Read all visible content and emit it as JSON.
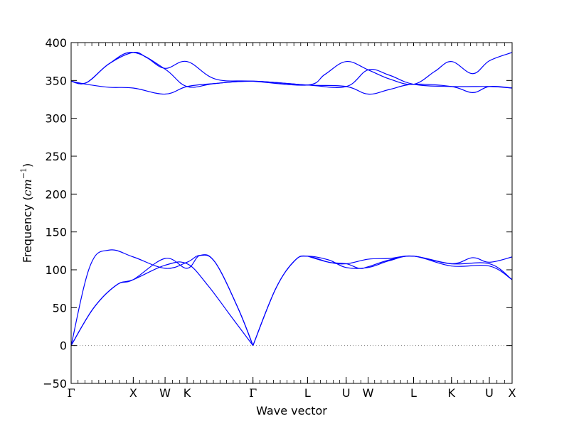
{
  "chart_data": {
    "type": "line",
    "title": "",
    "xlabel": "Wave vector",
    "ylabel": {
      "prefix": "Frequency (",
      "unit_base": "cm",
      "unit_exp": "−1",
      "suffix": ")"
    },
    "ylim": [
      -50,
      400
    ],
    "yticks": [
      -50,
      0,
      50,
      100,
      150,
      200,
      250,
      300,
      350,
      400
    ],
    "ytick_labels": [
      "−50",
      "0",
      "50",
      "100",
      "150",
      "200",
      "250",
      "300",
      "350",
      "400"
    ],
    "xlim": [
      0,
      5.82
    ],
    "high_symmetry_points": [
      {
        "label": "Γ",
        "x": 0.0
      },
      {
        "label": "X",
        "x": 0.82
      },
      {
        "label": "W",
        "x": 1.24
      },
      {
        "label": "K",
        "x": 1.53
      },
      {
        "label": "Γ",
        "x": 2.4
      },
      {
        "label": "L",
        "x": 3.12
      },
      {
        "label": "U",
        "x": 3.63
      },
      {
        "label": "W",
        "x": 3.92
      },
      {
        "label": "L",
        "x": 4.52
      },
      {
        "label": "K",
        "x": 5.02
      },
      {
        "label": "U",
        "x": 5.52
      },
      {
        "label": "X",
        "x": 5.82
      }
    ],
    "zero_line": {
      "y": 0,
      "style": "dotted",
      "color": "#808080"
    },
    "line_color": "#0000ff",
    "grid": false,
    "legend": "none",
    "series": [
      {
        "points": [
          [
            0,
            0
          ],
          [
            0.25,
            105
          ],
          [
            0.5,
            126
          ],
          [
            0.82,
            117
          ],
          [
            1.24,
            102
          ],
          [
            1.53,
            110
          ],
          [
            1.7,
            119
          ],
          [
            1.9,
            110
          ],
          [
            2.2,
            50
          ],
          [
            2.4,
            0
          ]
        ]
      },
      {
        "points": [
          [
            0,
            0
          ],
          [
            0.3,
            50
          ],
          [
            0.6,
            80
          ],
          [
            0.82,
            87
          ],
          [
            1.24,
            115
          ],
          [
            1.53,
            102
          ],
          [
            1.7,
            119
          ],
          [
            1.9,
            110
          ],
          [
            2.2,
            50
          ],
          [
            2.4,
            0
          ]
        ]
      },
      {
        "points": [
          [
            0,
            0
          ],
          [
            0.3,
            50
          ],
          [
            0.6,
            80
          ],
          [
            0.82,
            87
          ],
          [
            1.24,
            106
          ],
          [
            1.53,
            108
          ],
          [
            1.8,
            80
          ],
          [
            2.1,
            40
          ],
          [
            2.4,
            0
          ]
        ]
      },
      {
        "points": [
          [
            2.4,
            0
          ],
          [
            2.7,
            75
          ],
          [
            2.95,
            112
          ],
          [
            3.12,
            118
          ],
          [
            3.4,
            113
          ],
          [
            3.63,
            103
          ],
          [
            3.92,
            103
          ],
          [
            4.2,
            112
          ],
          [
            4.52,
            118
          ],
          [
            5.02,
            105
          ],
          [
            5.52,
            105
          ],
          [
            5.82,
            87
          ]
        ]
      },
      {
        "points": [
          [
            2.4,
            0
          ],
          [
            2.7,
            75
          ],
          [
            2.95,
            112
          ],
          [
            3.12,
            118
          ],
          [
            3.4,
            110
          ],
          [
            3.63,
            108
          ],
          [
            3.92,
            114
          ],
          [
            4.2,
            115
          ],
          [
            4.52,
            118
          ],
          [
            5.02,
            108
          ],
          [
            5.3,
            116
          ],
          [
            5.52,
            110
          ],
          [
            5.82,
            117
          ]
        ]
      },
      {
        "points": [
          [
            3.12,
            118
          ],
          [
            3.4,
            110
          ],
          [
            3.63,
            108
          ],
          [
            3.8,
            102
          ],
          [
            3.92,
            104
          ],
          [
            4.2,
            113
          ],
          [
            4.52,
            118
          ],
          [
            5.02,
            108
          ],
          [
            5.52,
            108
          ],
          [
            5.82,
            87
          ]
        ]
      },
      {
        "points": [
          [
            0,
            349
          ],
          [
            0.2,
            345
          ],
          [
            0.5,
            341
          ],
          [
            0.82,
            340
          ],
          [
            1.24,
            332
          ],
          [
            1.53,
            342
          ],
          [
            1.9,
            346
          ],
          [
            2.4,
            349
          ],
          [
            3.12,
            344
          ],
          [
            3.63,
            342
          ],
          [
            3.92,
            332
          ],
          [
            4.2,
            338
          ],
          [
            4.52,
            345
          ],
          [
            5.02,
            342
          ],
          [
            5.3,
            334
          ],
          [
            5.52,
            342
          ],
          [
            5.82,
            340
          ]
        ]
      },
      {
        "points": [
          [
            0,
            349
          ],
          [
            0.2,
            347
          ],
          [
            0.5,
            372
          ],
          [
            0.82,
            387
          ],
          [
            1.24,
            365
          ],
          [
            1.53,
            342
          ],
          [
            1.9,
            346
          ],
          [
            2.4,
            349
          ],
          [
            3.12,
            344
          ],
          [
            3.63,
            342
          ],
          [
            3.92,
            364
          ],
          [
            4.2,
            357
          ],
          [
            4.52,
            345
          ],
          [
            5.02,
            342
          ],
          [
            5.52,
            342
          ],
          [
            5.82,
            340
          ]
        ]
      },
      {
        "points": [
          [
            0,
            349
          ],
          [
            0.2,
            347
          ],
          [
            0.5,
            372
          ],
          [
            0.82,
            387
          ],
          [
            1.0,
            380
          ],
          [
            1.24,
            366
          ],
          [
            1.53,
            375
          ],
          [
            1.9,
            352
          ],
          [
            2.4,
            349
          ],
          [
            3.12,
            344
          ],
          [
            3.35,
            358
          ],
          [
            3.63,
            375
          ],
          [
            3.92,
            364
          ],
          [
            4.2,
            352
          ],
          [
            4.52,
            345
          ],
          [
            4.8,
            362
          ],
          [
            5.02,
            375
          ],
          [
            5.3,
            359
          ],
          [
            5.52,
            376
          ],
          [
            5.82,
            387
          ]
        ]
      }
    ]
  }
}
